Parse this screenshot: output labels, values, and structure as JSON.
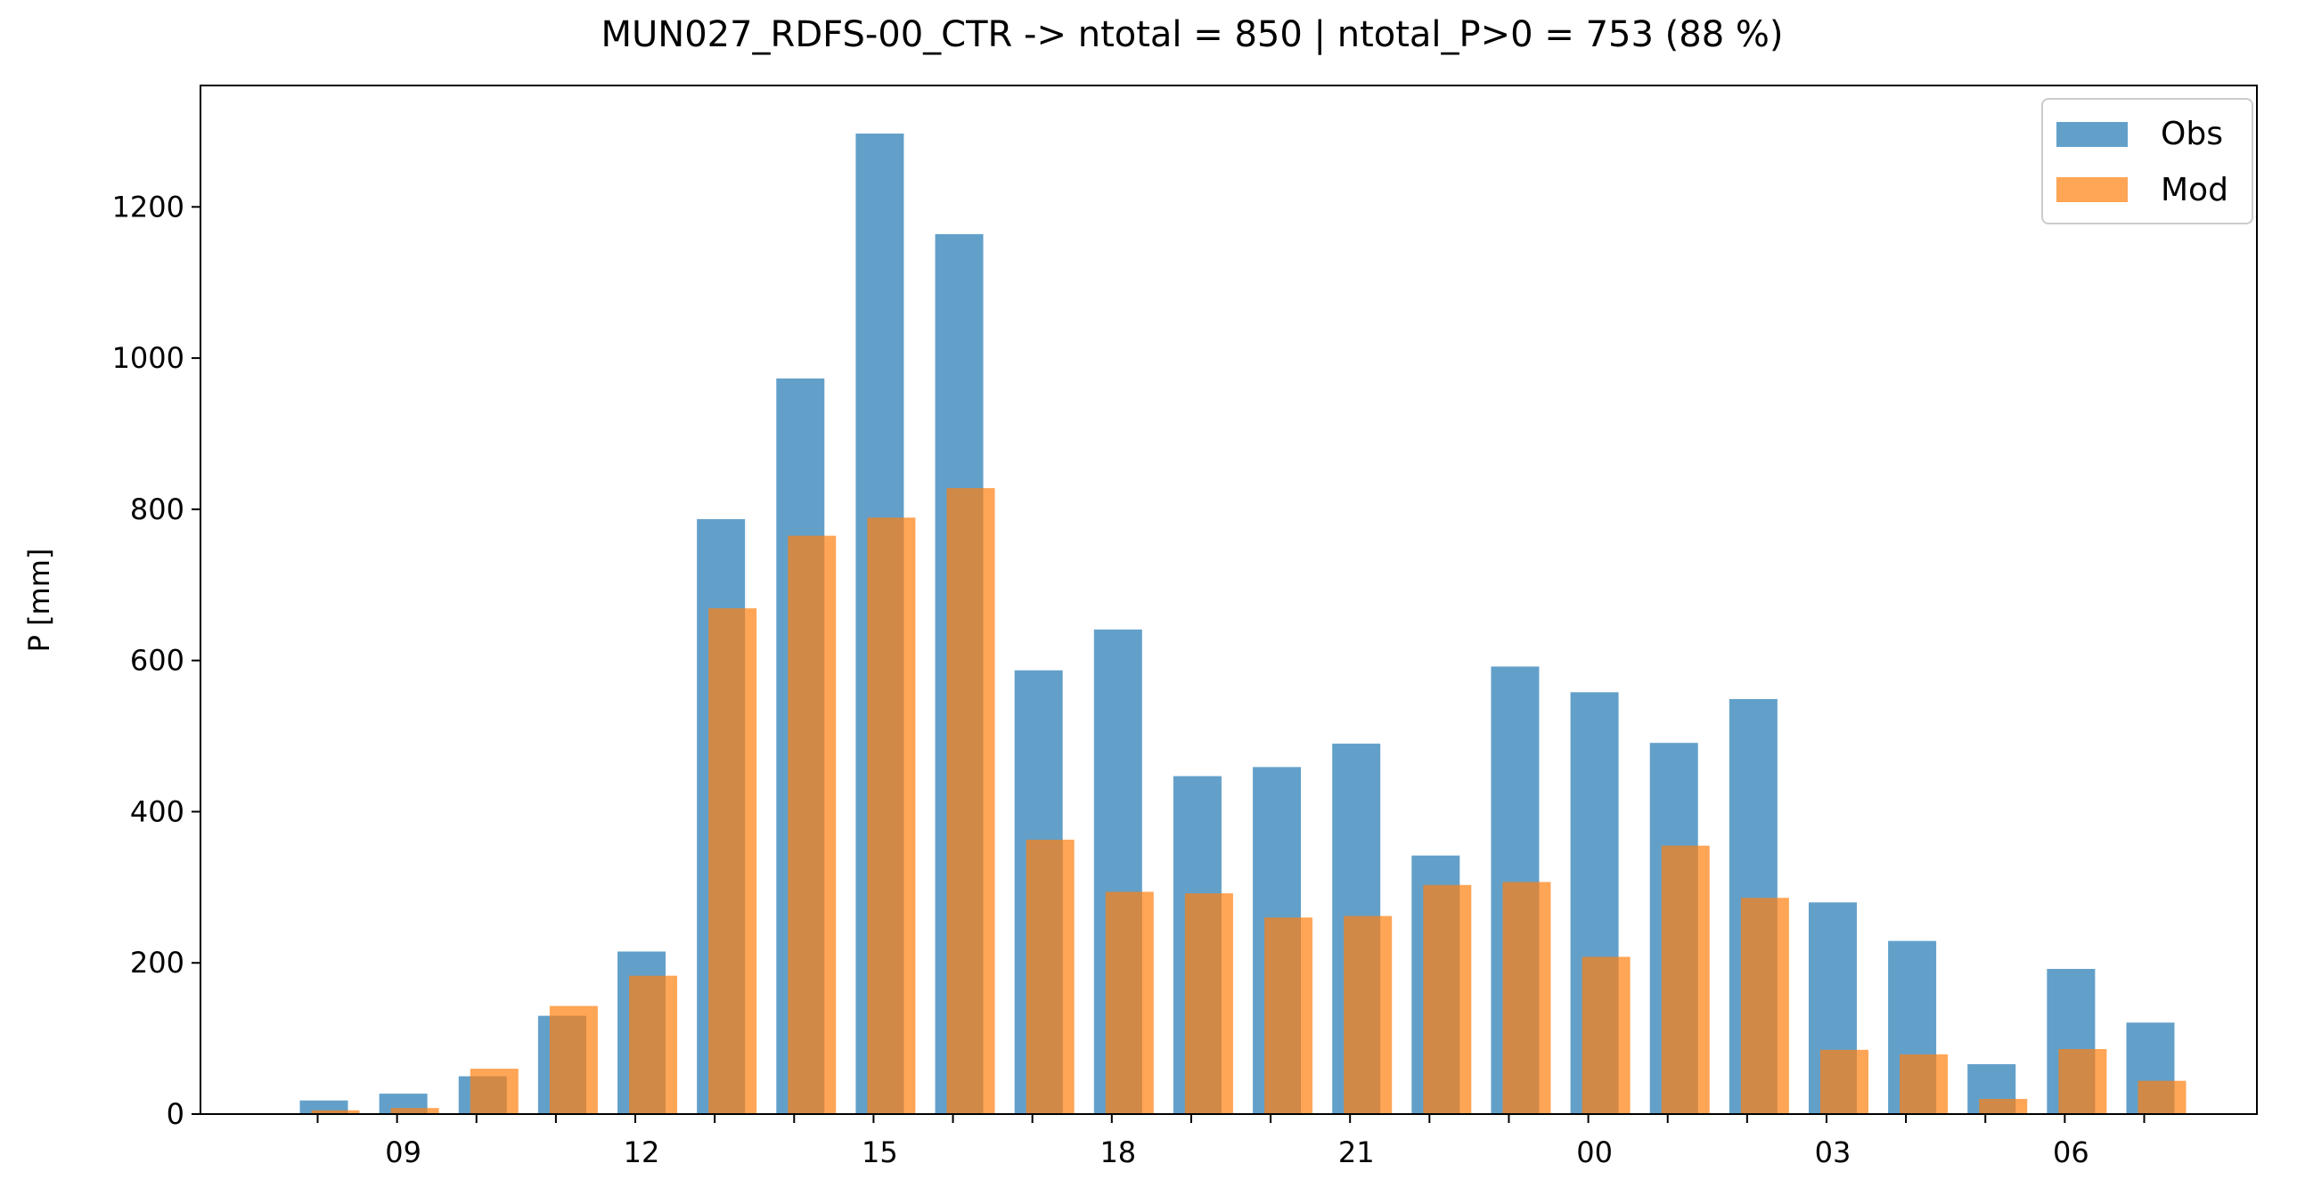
{
  "chart_data": {
    "type": "bar",
    "title": "MUN027_RDFS-00_CTR -> ntotal = 850 | ntotal_P>0 = 753 (88 %)",
    "ylabel": "P [mm]",
    "xlabel": "",
    "ylim": [
      0,
      1360
    ],
    "yticks": [
      0,
      200,
      400,
      600,
      800,
      1000,
      1200
    ],
    "hours": [
      "08",
      "09",
      "10",
      "11",
      "12",
      "13",
      "14",
      "15",
      "16",
      "17",
      "18",
      "19",
      "20",
      "21",
      "22",
      "23",
      "00",
      "01",
      "02",
      "03",
      "04",
      "05",
      "06",
      "07"
    ],
    "xtick_labels": [
      "09",
      "12",
      "15",
      "18",
      "21",
      "00",
      "03",
      "06"
    ],
    "xtick_label_hours": [
      "09",
      "12",
      "15",
      "18",
      "21",
      "00",
      "03",
      "06"
    ],
    "series": [
      {
        "name": "Obs",
        "color": "#1f77b4",
        "values": [
          18,
          27,
          50,
          130,
          215,
          787,
          973,
          1297,
          1164,
          587,
          641,
          447,
          459,
          490,
          342,
          592,
          558,
          491,
          549,
          280,
          229,
          66,
          192,
          121
        ]
      },
      {
        "name": "Mod",
        "color": "#ff7f0e",
        "values": [
          5,
          8,
          60,
          143,
          183,
          669,
          765,
          789,
          828,
          363,
          294,
          292,
          260,
          262,
          303,
          307,
          208,
          355,
          286,
          85,
          79,
          20,
          86,
          44
        ]
      }
    ],
    "legend": {
      "placement": "top-right",
      "entries": [
        "Obs",
        "Mod"
      ]
    },
    "grid": false
  }
}
